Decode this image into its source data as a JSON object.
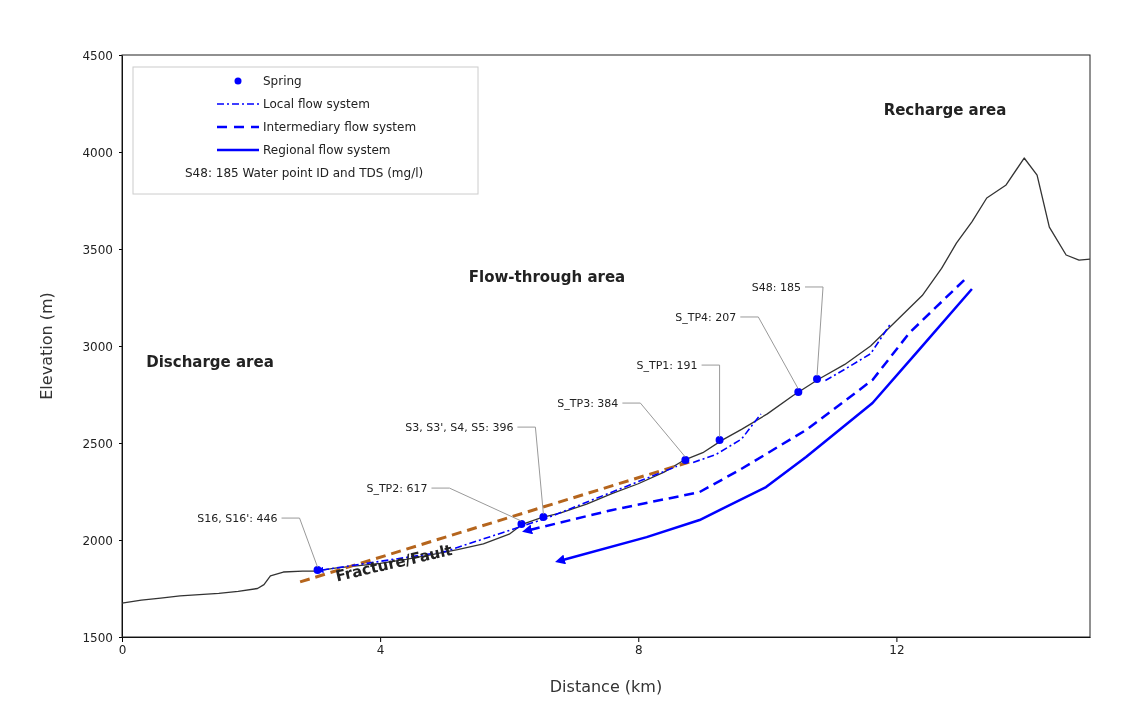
{
  "chart_data": {
    "type": "line",
    "xlabel": "Distance (km)",
    "ylabel": "Elevation (m)",
    "xlim": [
      0,
      15
    ],
    "xticks": [
      0,
      4,
      8,
      12
    ],
    "ylim": [
      1500,
      4500
    ],
    "yticks": [
      1500,
      2000,
      2500,
      3000,
      3500,
      4000,
      4500
    ],
    "grid": false,
    "legend": "top left",
    "series": [
      {
        "type": "line",
        "color": "#333333",
        "line_style": "solid",
        "x": [
          0,
          0.3,
          0.6,
          0.9,
          1.2,
          1.5,
          1.8,
          2.1,
          2.2,
          2.3,
          2.5,
          2.8,
          3.0,
          3.3,
          3.6,
          4.0,
          4.4,
          4.8,
          5.2,
          5.6,
          6.0,
          6.2,
          6.5,
          6.8,
          7.2,
          7.6,
          8.0,
          8.4,
          8.7,
          9.0,
          9.3,
          9.6,
          10.0,
          10.4,
          10.8,
          11.2,
          11.6,
          12.0,
          12.4,
          12.7,
          12.93,
          13.17,
          13.4,
          13.7,
          13.98,
          14.18,
          14.37,
          14.63,
          14.83,
          15
        ],
        "values": [
          1675,
          1690,
          1700,
          1712,
          1718,
          1725,
          1735,
          1750,
          1770,
          1815,
          1835,
          1840,
          1840,
          1855,
          1865,
          1880,
          1900,
          1925,
          1950,
          1980,
          2030,
          2080,
          2115,
          2140,
          2185,
          2240,
          2290,
          2350,
          2410,
          2450,
          2515,
          2570,
          2650,
          2745,
          2830,
          2905,
          3000,
          3130,
          3260,
          3400,
          3530,
          3640,
          3763,
          3830,
          3969,
          3881,
          3613,
          3469,
          3443,
          3448
        ]
      },
      {
        "type": "line",
        "color": "#b5651d",
        "line_style": "dashed",
        "x": [
          2.76,
          8.79
        ],
        "values": [
          1784,
          2402
        ]
      },
      {
        "type": "scatter",
        "name": "Spring",
        "color": "#0000ff",
        "marker": "circle",
        "x": [
          3.03,
          6.19,
          6.53,
          8.73,
          9.26,
          10.48,
          10.77
        ],
        "values": [
          1845,
          2082,
          2118,
          2412,
          2515,
          2763,
          2830
        ]
      },
      {
        "type": "line",
        "name": "Local flow system",
        "color": "#0000ff",
        "line_style": "dashdot",
        "x": [
          3.1,
          5.0,
          6.6,
          7.5,
          8.6,
          8.7,
          8.85,
          9.2,
          9.6,
          9.9,
          10.2,
          10.9,
          11.2,
          11.6,
          11.9
        ],
        "values": [
          1845,
          1940,
          2115,
          2235,
          2380,
          null,
          2400,
          2440,
          2520,
          2650,
          null,
          2822,
          2880,
          2960,
          3110
        ]
      },
      {
        "type": "line",
        "name": "Intermediary flow system",
        "color": "#0000ff",
        "line_style": "dashed",
        "x": [
          6.32,
          7.6,
          8.95,
          9.57,
          10.6,
          11.63,
          12.2,
          13.05
        ],
        "values": [
          2052,
          2155,
          2247,
          2361,
          2567,
          2825,
          3067,
          3340
        ]
      },
      {
        "type": "line",
        "name": "Regional flow system",
        "color": "#0000ff",
        "line_style": "solid",
        "x": [
          6.83,
          8.13,
          8.95,
          9.98,
          10.6,
          11.63,
          12.35,
          13.17
        ],
        "values": [
          1897,
          2015,
          2103,
          2273,
          2428,
          2706,
          2980,
          3294
        ]
      }
    ],
    "annotations": [
      "Discharge area",
      "Flow-through area",
      "Recharge area",
      "Fracture/Fault",
      "S48: 185  Water point ID and TDS (mg/l)",
      {
        "text": "S16, S16': 446",
        "x": 3.03,
        "y": 1845
      },
      {
        "text": "S_TP2: 617",
        "x": 6.19,
        "y": 2082
      },
      {
        "text": "S3, S3', S4, S5: 396",
        "x": 6.53,
        "y": 2118
      },
      {
        "text": "S_TP3: 384",
        "x": 8.73,
        "y": 2412
      },
      {
        "text": "S_TP1: 191",
        "x": 9.26,
        "y": 2515
      },
      {
        "text": "S_TP4: 207",
        "x": 10.48,
        "y": 2763
      },
      {
        "text": "S48: 185",
        "x": 10.77,
        "y": 2830
      }
    ]
  }
}
